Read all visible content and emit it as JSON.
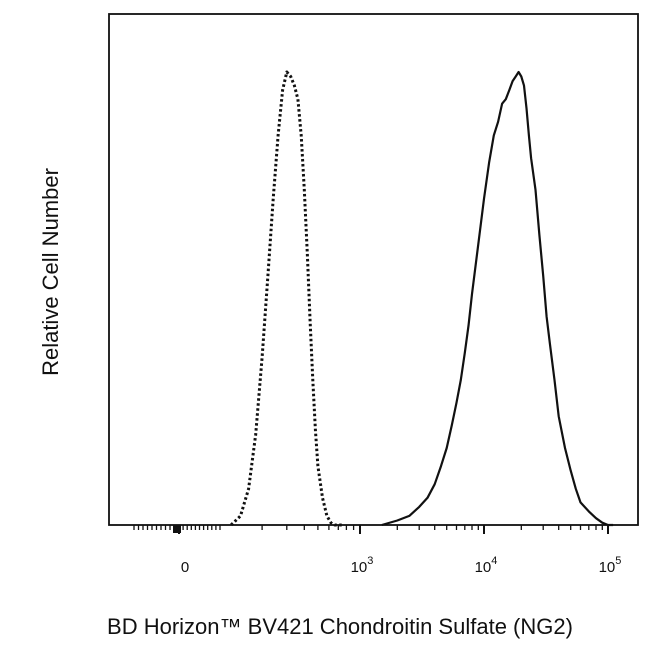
{
  "chart_data": {
    "type": "line",
    "title": "",
    "xlabel": "BD Horizon™ BV421 Chondroitin Sulfate (NG2)",
    "ylabel": "Relative Cell Number",
    "x_scale": "biexponential (linear near 0, log above ~10^2)",
    "y_ticks": "none",
    "grid": false,
    "legend": "none",
    "xlim": [
      -100,
      130000
    ],
    "ylim": [
      0,
      100
    ],
    "x_ticks": [
      {
        "value": 0,
        "base": "0",
        "exp": ""
      },
      {
        "value": 1000,
        "base": "10",
        "exp": "3"
      },
      {
        "value": 10000,
        "base": "10",
        "exp": "4"
      },
      {
        "value": 100000,
        "base": "10",
        "exp": "5"
      }
    ],
    "series": [
      {
        "style": "dotted",
        "color": "#111111",
        "x": [
          120,
          140,
          160,
          180,
          200,
          220,
          240,
          260,
          280,
          300,
          320,
          340,
          360,
          380,
          400,
          420,
          440,
          460,
          480,
          500,
          540,
          580,
          620,
          660,
          700,
          750
        ],
        "y": [
          0,
          2,
          8,
          20,
          37,
          55,
          72,
          86,
          96,
          100,
          99,
          97,
          94,
          86,
          74,
          60,
          45,
          32,
          21,
          13,
          6,
          2,
          0.5,
          0,
          0,
          0
        ]
      },
      {
        "style": "solid",
        "color": "#111111",
        "x": [
          1500,
          2000,
          2500,
          3000,
          3500,
          4000,
          4500,
          5000,
          5500,
          6000,
          6500,
          7000,
          7500,
          8000,
          9000,
          10000,
          11000,
          12000,
          13000,
          14000,
          15000,
          16000,
          17000,
          18000,
          19000,
          20000,
          21000,
          22000,
          23000,
          24000,
          26000,
          28000,
          30000,
          32000,
          34000,
          37000,
          40000,
          45000,
          50000,
          55000,
          60000,
          70000,
          80000,
          90000,
          100000,
          110000
        ],
        "y": [
          0,
          1,
          2,
          4,
          6,
          9,
          13,
          17,
          22,
          27,
          32,
          38,
          44,
          51,
          62,
          72,
          80,
          86,
          89,
          93,
          94,
          96,
          98,
          99,
          100,
          99,
          97,
          92,
          86,
          81,
          74,
          64,
          55,
          46,
          40,
          32,
          24,
          17,
          12,
          8,
          5,
          3,
          1.5,
          0.5,
          0,
          0
        ]
      }
    ]
  }
}
